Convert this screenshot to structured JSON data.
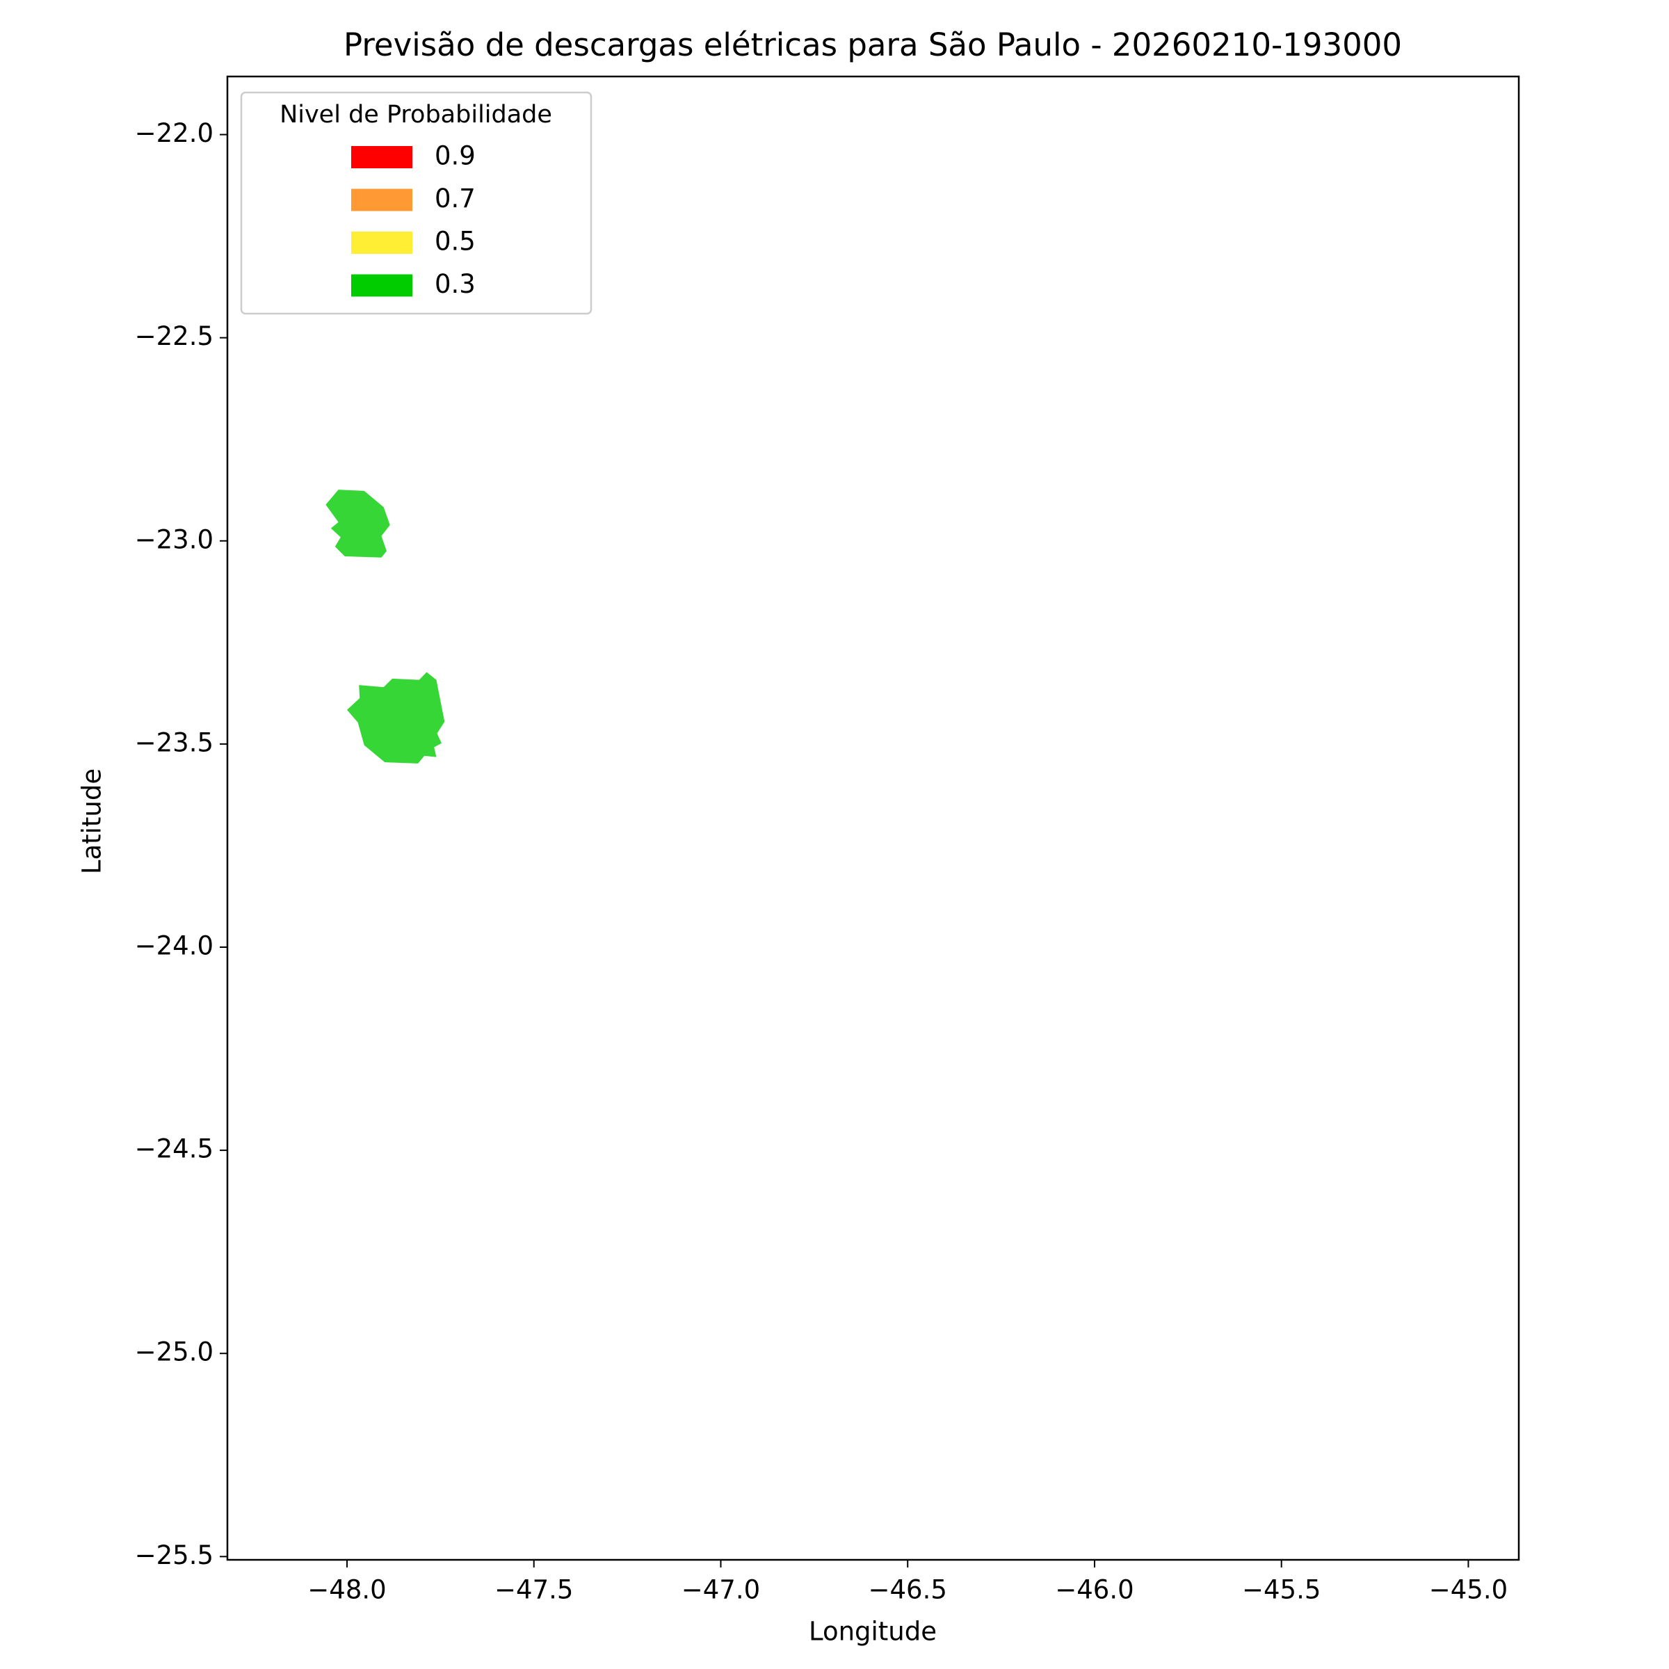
{
  "chart_data": {
    "type": "map",
    "title": "Previsão de descargas elétricas para São Paulo - 20260210-193000",
    "xlabel": "Longitude",
    "ylabel": "Latitude",
    "xlim": [
      -48.32,
      -44.865
    ],
    "ylim": [
      -25.508,
      -21.857
    ],
    "xticks": [
      {
        "value": -48,
        "label": "−48.0"
      },
      {
        "value": -47.5,
        "label": "−47.5"
      },
      {
        "value": -47,
        "label": "−47.0"
      },
      {
        "value": -46.5,
        "label": "−46.5"
      },
      {
        "value": -46,
        "label": "−46.0"
      },
      {
        "value": -45.5,
        "label": "−45.5"
      },
      {
        "value": -45,
        "label": "−45.0"
      }
    ],
    "yticks": [
      {
        "value": -22,
        "label": "−22.0"
      },
      {
        "value": -22.5,
        "label": "−22.5"
      },
      {
        "value": -23,
        "label": "−23.0"
      },
      {
        "value": -23.5,
        "label": "−23.5"
      },
      {
        "value": -24,
        "label": "−24.0"
      },
      {
        "value": -24.5,
        "label": "−24.5"
      },
      {
        "value": -25,
        "label": "−25.0"
      },
      {
        "value": -25.5,
        "label": "−25.5"
      }
    ],
    "legend": {
      "title": "Nivel de Probabilidade",
      "loc": "upper left",
      "entries": [
        {
          "label": "0.9",
          "color": "#ff0000"
        },
        {
          "label": "0.7",
          "color": "#ff9933"
        },
        {
          "label": "0.5",
          "color": "#ffee33"
        },
        {
          "label": "0.3",
          "color": "#00cc00"
        }
      ]
    },
    "series": [
      {
        "color": "#36d636",
        "x": [
          -48.057,
          -48.023,
          -47.954,
          -47.902,
          -47.885,
          -47.908,
          -47.894,
          -47.908,
          -48.006,
          -48.032,
          -48.017,
          -48.043,
          -48.023
        ],
        "y": [
          -22.911,
          -22.874,
          -22.877,
          -22.917,
          -22.961,
          -22.988,
          -23.025,
          -23.041,
          -23.038,
          -23.014,
          -22.991,
          -22.969,
          -22.954
        ]
      },
      {
        "color": "#36d636",
        "x": [
          -48.0,
          -47.966,
          -47.968,
          -47.902,
          -47.879,
          -47.807,
          -47.787,
          -47.761,
          -47.739,
          -47.759,
          -47.747,
          -47.767,
          -47.761,
          -47.793,
          -47.81,
          -47.899,
          -47.954,
          -47.971
        ],
        "y": [
          -23.416,
          -23.387,
          -23.355,
          -23.36,
          -23.339,
          -23.342,
          -23.323,
          -23.342,
          -23.445,
          -23.474,
          -23.498,
          -23.508,
          -23.532,
          -23.529,
          -23.548,
          -23.545,
          -23.503,
          -23.447
        ]
      }
    ]
  }
}
